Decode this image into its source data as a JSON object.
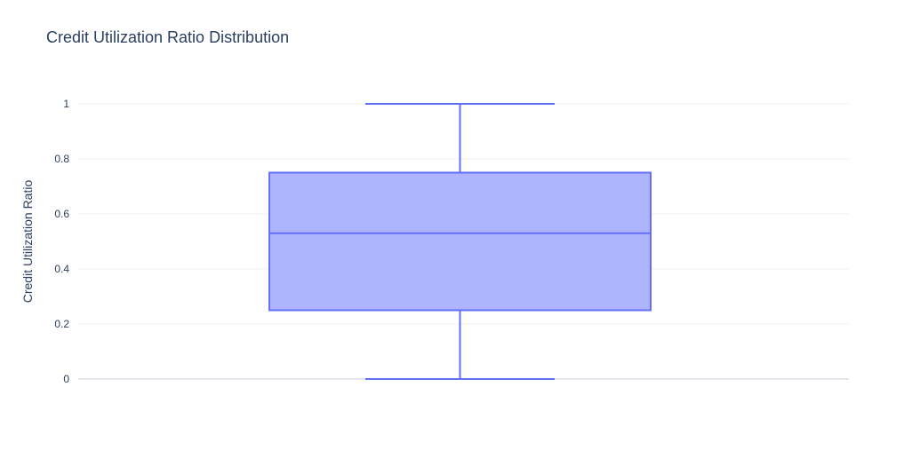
{
  "chart_data": {
    "type": "box",
    "title": "Credit Utilization Ratio Distribution",
    "xlabel": "",
    "ylabel": "Credit Utilization Ratio",
    "ylim": [
      0,
      1
    ],
    "yticks": [
      0,
      0.2,
      0.4,
      0.6,
      0.8,
      1
    ],
    "ytick_labels": [
      "0",
      "0.2",
      "0.4",
      "0.6",
      "0.8",
      "1"
    ],
    "grid": true,
    "series": [
      {
        "min": 0,
        "q1": 0.25,
        "median": 0.53,
        "q3": 0.75,
        "max": 1,
        "color": "#636efa",
        "fill": "#aeb4fb"
      }
    ]
  }
}
